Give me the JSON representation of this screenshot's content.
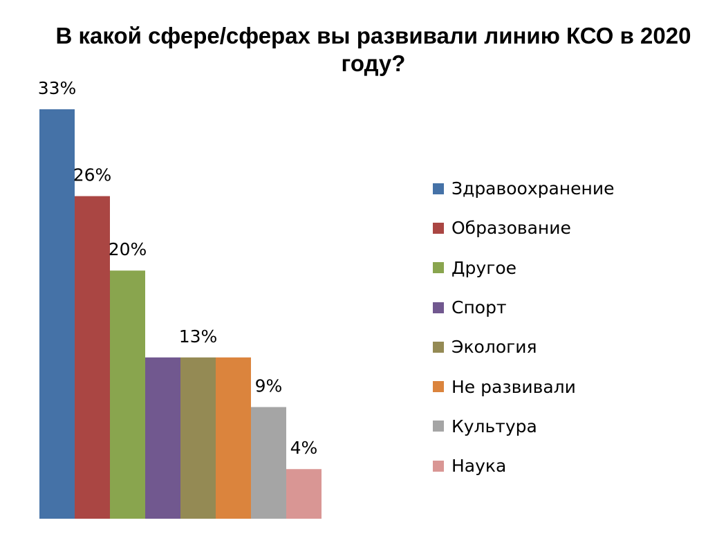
{
  "chart_data": {
    "type": "bar",
    "title": "В какой сфере/сферах вы развивали линию КСО в 2020 году?",
    "xlabel": "",
    "ylabel": "",
    "ylim": [
      0,
      33
    ],
    "grid": false,
    "legend_position": "right",
    "value_suffix": "%",
    "series": [
      {
        "name": "Здравоохранение",
        "value": 33,
        "label": "33%",
        "color": "#4572A7"
      },
      {
        "name": "Образование",
        "value": 26,
        "label": "26%",
        "color": "#AA4643"
      },
      {
        "name": "Другое",
        "value": 20,
        "label": "20%",
        "color": "#89A54E"
      },
      {
        "name": "Спорт",
        "value": 13,
        "label": "",
        "color": "#71588F"
      },
      {
        "name": "Экология",
        "value": 13,
        "label": "13%",
        "color": "#948A54"
      },
      {
        "name": "Не развивали",
        "value": 13,
        "label": "",
        "color": "#DB843D"
      },
      {
        "name": "Культура",
        "value": 9,
        "label": "9%",
        "color": "#A5A5A5"
      },
      {
        "name": "Наука",
        "value": 4,
        "label": "4%",
        "color": "#D99694"
      }
    ]
  }
}
